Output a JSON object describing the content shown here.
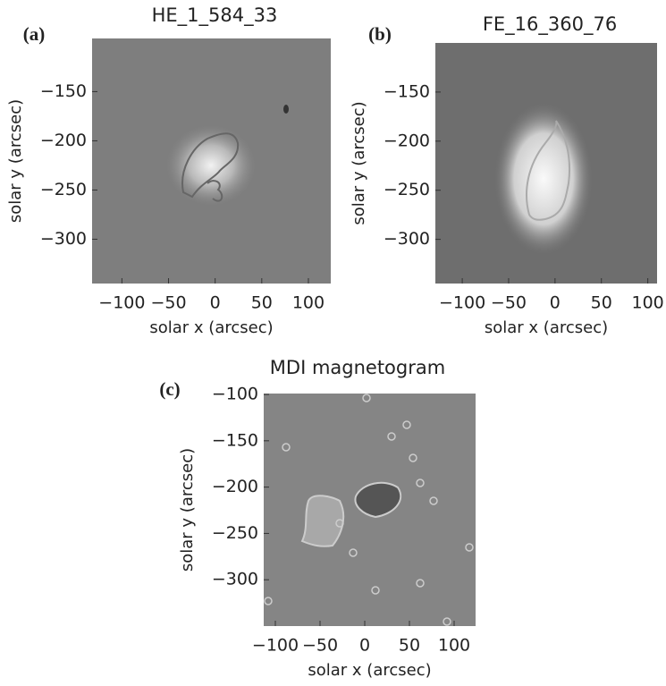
{
  "chart_data": [
    {
      "type": "image",
      "panel": "(a)",
      "title": "HE_1_584_33",
      "xlabel": "solar x (arcsec)",
      "ylabel": "solar y (arcsec)",
      "xlim": [
        -132,
        124
      ],
      "ylim": [
        -345,
        -96
      ],
      "xticks": [
        {
          "value": -100,
          "label": "−100"
        },
        {
          "value": -50,
          "label": "−50"
        },
        0,
        50,
        100
      ],
      "yticks": [
        {
          "value": -150,
          "label": "−150"
        },
        {
          "value": -200,
          "label": "−200"
        },
        {
          "value": -250,
          "label": "−250"
        },
        {
          "value": -300,
          "label": "−300"
        }
      ]
    },
    {
      "type": "image",
      "panel": "(b)",
      "title": "FE_16_360_76",
      "xlabel": "solar x (arcsec)",
      "ylabel": "solar y (arcsec)",
      "xlim": [
        -129,
        110
      ],
      "ylim": [
        -345,
        -100
      ],
      "xticks": [
        {
          "value": -100,
          "label": "−100"
        },
        {
          "value": -50,
          "label": "−50"
        },
        0,
        50,
        100
      ],
      "yticks": [
        {
          "value": -150,
          "label": "−150"
        },
        {
          "value": -200,
          "label": "−200"
        },
        {
          "value": -250,
          "label": "−250"
        },
        {
          "value": -300,
          "label": "−300"
        }
      ]
    },
    {
      "type": "image",
      "panel": "(c)",
      "title": "MDI magnetogram",
      "xlabel": "solar x (arcsec)",
      "ylabel": "solar y (arcsec)",
      "xlim": [
        -113,
        124
      ],
      "ylim": [
        -350,
        -99
      ],
      "xticks": [
        {
          "value": -100,
          "label": "−100"
        },
        {
          "value": -50,
          "label": "−50"
        },
        0,
        50,
        100
      ],
      "yticks": [
        {
          "value": -100,
          "label": "−100"
        },
        {
          "value": -150,
          "label": "−150"
        },
        {
          "value": -200,
          "label": "−200"
        },
        {
          "value": -250,
          "label": "−250"
        },
        {
          "value": -300,
          "label": "−300"
        }
      ]
    }
  ]
}
